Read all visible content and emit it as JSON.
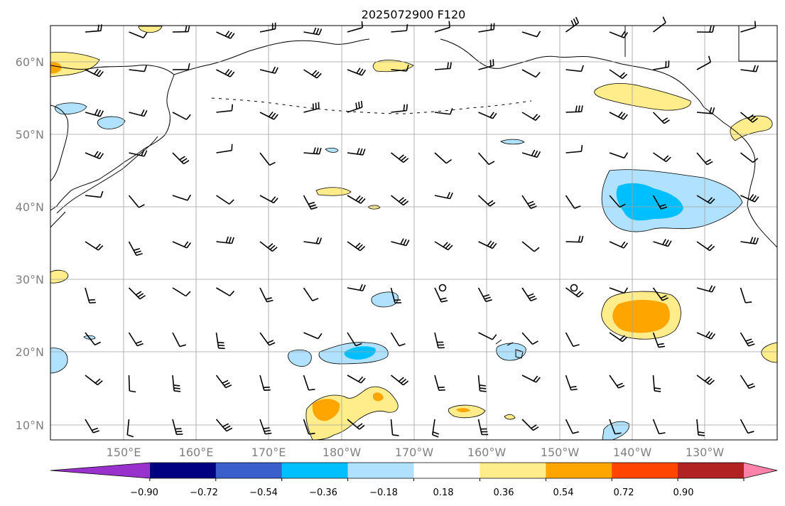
{
  "title": "2025072900 F120",
  "lat_labels": [
    "60°N",
    "50°N",
    "40°N",
    "30°N",
    "20°N",
    "10°N"
  ],
  "lon_labels": [
    "150°E",
    "160°E",
    "170°E",
    "180°W",
    "170°W",
    "160°W",
    "150°W",
    "140°W",
    "130°W"
  ],
  "colorbar": {
    "tick_labels": [
      "−0.90",
      "−0.72",
      "−0.54",
      "−0.36",
      "−0.18",
      "0.18",
      "0.36",
      "0.54",
      "0.72",
      "0.90"
    ],
    "colors": [
      "#9932CC",
      "#000080",
      "#3A5FCD",
      "#00BFFF",
      "#B0E2FF",
      "#FFFFFF",
      "#FFEC8B",
      "#FFA500",
      "#FF4500",
      "#B22222",
      "#FF82AB"
    ],
    "extend": "both"
  },
  "map": {
    "projection": "PlateCarree",
    "lon_range": [
      140,
      240
    ],
    "lat_range": [
      8,
      65
    ],
    "gridlines": true,
    "field": "shaded anomaly with wind barbs",
    "colors": {
      "coast": "#000000",
      "grid": "#a0a0a0",
      "frame": "#000000",
      "tick_label": "#808080"
    }
  }
}
